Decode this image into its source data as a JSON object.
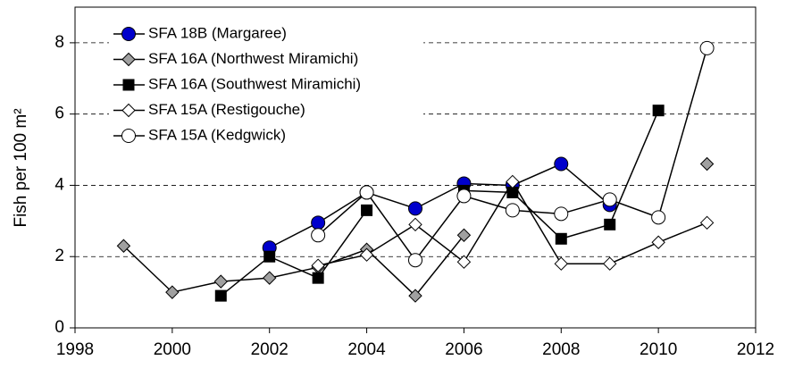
{
  "chart_data": {
    "type": "line",
    "y_label": "Fish per 100 m²",
    "x": [
      1999,
      2000,
      2001,
      2002,
      2003,
      2004,
      2005,
      2006,
      2007,
      2008,
      2009,
      2010,
      2011
    ],
    "xlim": [
      1998,
      2012
    ],
    "xticks": [
      1998,
      2000,
      2002,
      2004,
      2006,
      2008,
      2010,
      2012
    ],
    "ylim": [
      0,
      9
    ],
    "yticks": [
      0,
      2,
      4,
      6,
      8
    ],
    "grid": true,
    "legend": "upper left",
    "series": [
      {
        "name": "SFA 18B (Margaree)",
        "color": "#0000cc",
        "marker": "circle",
        "fill": "#0000cc",
        "values": [
          null,
          null,
          null,
          2.25,
          2.95,
          3.8,
          3.35,
          4.05,
          4.0,
          4.6,
          3.45,
          null,
          null
        ]
      },
      {
        "name": "SFA 16A (Northwest Miramichi)",
        "color": "#000000",
        "marker": "diamond",
        "fill": "#a0a0a0",
        "values": [
          2.3,
          1.0,
          1.3,
          1.4,
          1.7,
          2.2,
          0.9,
          2.6,
          null,
          null,
          null,
          null,
          4.6
        ]
      },
      {
        "name": "SFA 16A (Southwest Miramichi)",
        "color": "#000000",
        "marker": "square",
        "fill": "#000000",
        "values": [
          null,
          null,
          0.9,
          2.0,
          1.4,
          3.3,
          null,
          3.85,
          3.8,
          2.5,
          2.9,
          6.1,
          null
        ]
      },
      {
        "name": "SFA 15A (Restigouche)",
        "color": "#000000",
        "marker": "diamond",
        "fill": "#ffffff",
        "values": [
          null,
          null,
          null,
          null,
          1.75,
          2.05,
          2.9,
          1.85,
          4.1,
          1.8,
          1.8,
          2.4,
          2.95
        ]
      },
      {
        "name": "SFA 15A (Kedgwick)",
        "color": "#000000",
        "marker": "circle",
        "fill": "#ffffff",
        "values": [
          null,
          null,
          null,
          null,
          2.6,
          3.8,
          1.9,
          3.7,
          3.3,
          3.2,
          3.6,
          3.1,
          7.85
        ]
      }
    ]
  }
}
